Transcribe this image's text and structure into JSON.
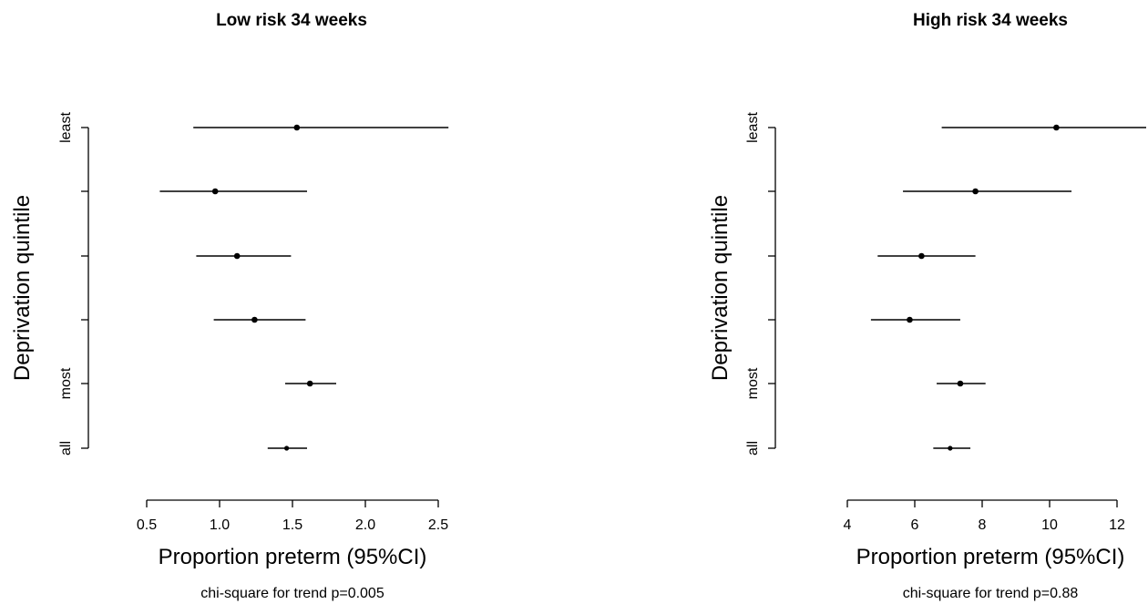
{
  "chart_data": [
    {
      "type": "forest",
      "title": "Low risk 34 weeks",
      "xlabel": "Proportion preterm (95%CI)",
      "ylabel": "Deprivation quintile",
      "note": "chi-square for trend p=0.005",
      "xlim": [
        0.5,
        2.5
      ],
      "xticks": [
        0.5,
        1.0,
        1.5,
        2.0,
        2.5
      ],
      "xtick_labels": [
        "0.5",
        "1.0",
        "1.5",
        "2.0",
        "2.5"
      ],
      "y_tick_labels": [
        "least",
        "",
        "",
        "",
        "most",
        "all"
      ],
      "rows": [
        {
          "label": "least",
          "estimate": 1.53,
          "lower": 0.82,
          "upper": 2.57
        },
        {
          "label": "",
          "estimate": 0.97,
          "lower": 0.59,
          "upper": 1.6
        },
        {
          "label": "",
          "estimate": 1.12,
          "lower": 0.84,
          "upper": 1.49
        },
        {
          "label": "",
          "estimate": 1.24,
          "lower": 0.96,
          "upper": 1.59
        },
        {
          "label": "most",
          "estimate": 1.62,
          "lower": 1.45,
          "upper": 1.8
        },
        {
          "label": "all",
          "estimate": 1.46,
          "lower": 1.33,
          "upper": 1.6
        }
      ],
      "grid": false
    },
    {
      "type": "forest",
      "title": "High risk 34 weeks",
      "xlabel": "Proportion preterm (95%CI)",
      "ylabel": "Deprivation quintile",
      "note": "chi-square for trend p=0.88",
      "xlim": [
        4,
        12
      ],
      "xticks": [
        4,
        6,
        8,
        10,
        12
      ],
      "xtick_labels": [
        "4",
        "6",
        "8",
        "10",
        "12"
      ],
      "y_tick_labels": [
        "least",
        "",
        "",
        "",
        "most",
        "all"
      ],
      "rows": [
        {
          "label": "least",
          "estimate": 10.2,
          "lower": 6.8,
          "upper": 13.0
        },
        {
          "label": "",
          "estimate": 7.8,
          "lower": 5.65,
          "upper": 10.65
        },
        {
          "label": "",
          "estimate": 6.2,
          "lower": 4.9,
          "upper": 7.8
        },
        {
          "label": "",
          "estimate": 5.85,
          "lower": 4.7,
          "upper": 7.35
        },
        {
          "label": "most",
          "estimate": 7.35,
          "lower": 6.65,
          "upper": 8.1
        },
        {
          "label": "all",
          "estimate": 7.05,
          "lower": 6.55,
          "upper": 7.65
        }
      ],
      "grid": false
    }
  ]
}
